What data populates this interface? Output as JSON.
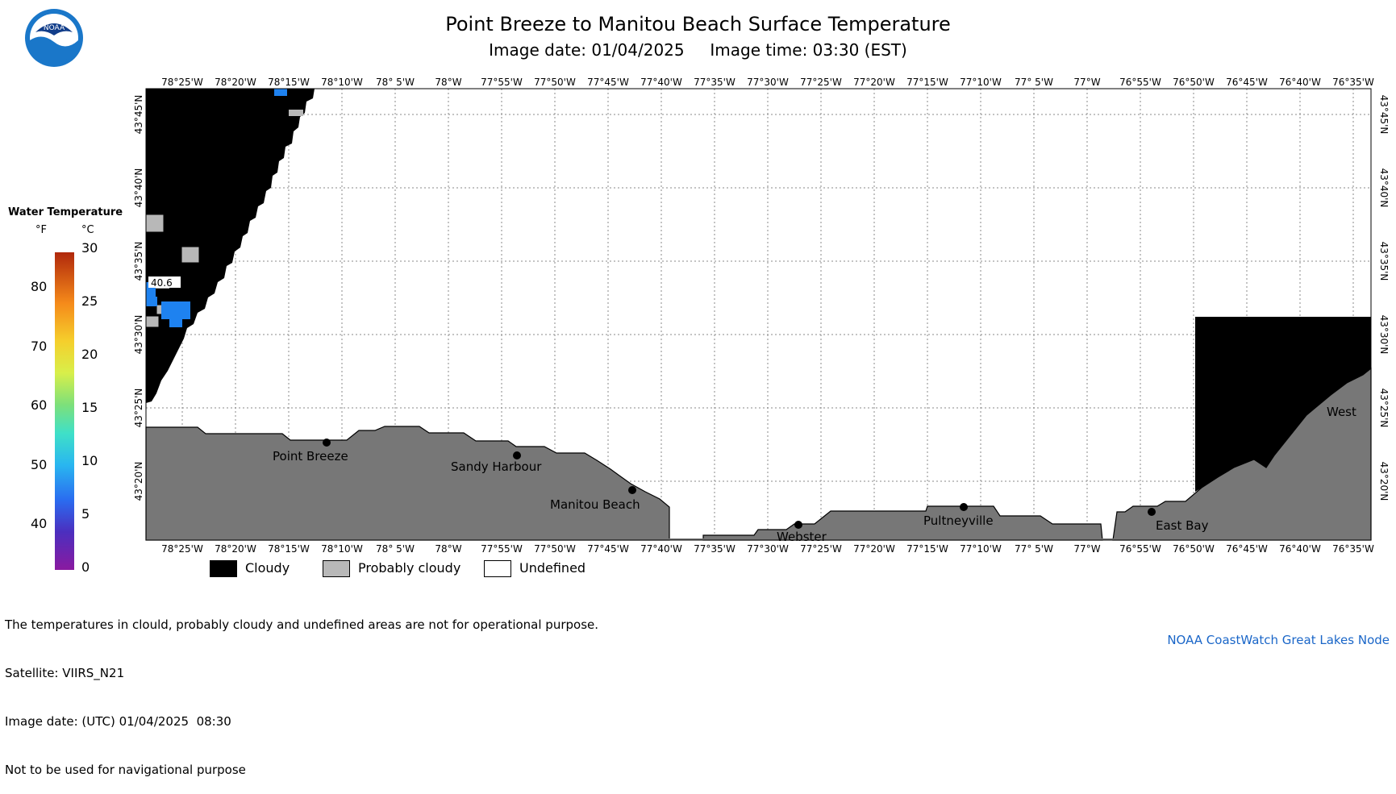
{
  "header": {
    "title": "Point Breeze to Manitou Beach Surface Temperature",
    "subtitle": "Image date: 01/04/2025     Image time: 03:30 (EST)",
    "logo_text": "NOAA"
  },
  "colorbar": {
    "title": "Water Temperature",
    "unit_f": "°F",
    "unit_c": "°C",
    "ticks_f": [
      "40",
      "50",
      "60",
      "70",
      "80"
    ],
    "ticks_c": [
      "0",
      "5",
      "10",
      "15",
      "20",
      "25",
      "30"
    ],
    "range_c": [
      0,
      30
    ]
  },
  "map": {
    "lon_labels": [
      "78°25'W",
      "78°20'W",
      "78°15'W",
      "78°10'W",
      "78° 5'W",
      "78°W",
      "77°55'W",
      "77°50'W",
      "77°45'W",
      "77°40'W",
      "77°35'W",
      "77°30'W",
      "77°25'W",
      "77°20'W",
      "77°15'W",
      "77°10'W",
      "77° 5'W",
      "77°W",
      "76°55'W",
      "76°50'W",
      "76°45'W",
      "76°40'W",
      "76°35'W"
    ],
    "lat_labels": [
      "43°45'N",
      "43°40'N",
      "43°35'N",
      "43°30'N",
      "43°25'N",
      "43°20'N"
    ],
    "places": [
      "Point Breeze",
      "Sandy Harbour",
      "Manitou Beach",
      "Webster",
      "Pultneyville",
      "East Bay",
      "West"
    ],
    "temp_label": "40.6",
    "colors": {
      "land": "#777777",
      "cloudy": "#000000",
      "probably_cloudy": "#b8b8b8",
      "water_temp": "#1e82f0",
      "grid": "#8a8a8a"
    }
  },
  "legend": {
    "cloudy": "Cloudy",
    "probably_cloudy": "Probably cloudy",
    "undefined": "Undefined"
  },
  "footer": {
    "line1": "The temperatures in clould, probably cloudy and undefined areas are not for operational purpose.",
    "line2": "Satellite: VIIRS_N21",
    "line3": "Image date: (UTC) 01/04/2025  08:30",
    "line4": "Not to be used for navigational purpose"
  },
  "credit": "NOAA CoastWatch Great Lakes Node"
}
